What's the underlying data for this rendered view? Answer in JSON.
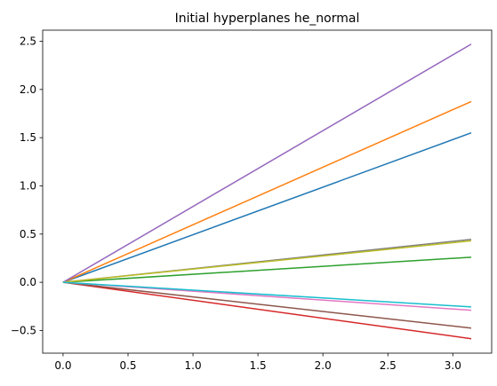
{
  "chart_data": {
    "type": "line",
    "title": "Initial hyperplanes he_normal",
    "xlabel": "",
    "ylabel": "",
    "xlim": [
      -0.157,
      3.299
    ],
    "ylim": [
      -0.735,
      2.615
    ],
    "xticks": [
      0.0,
      0.5,
      1.0,
      1.5,
      2.0,
      2.5,
      3.0
    ],
    "xtick_labels": [
      "0.0",
      "0.5",
      "1.0",
      "1.5",
      "2.0",
      "2.5",
      "3.0"
    ],
    "yticks": [
      -0.5,
      0.0,
      0.5,
      1.0,
      1.5,
      2.0,
      2.5
    ],
    "ytick_labels": [
      "−0.5",
      "0.0",
      "0.5",
      "1.0",
      "1.5",
      "2.0",
      "2.5"
    ],
    "grid": false,
    "legend": "none",
    "x": [
      0.0,
      3.1416
    ],
    "series": [
      {
        "color": "#1f77b4",
        "values": [
          0.0,
          1.55
        ]
      },
      {
        "color": "#ff7f0e",
        "values": [
          0.0,
          1.875
        ]
      },
      {
        "color": "#2ca02c",
        "values": [
          0.0,
          0.26
        ]
      },
      {
        "color": "#d62728",
        "values": [
          0.0,
          -0.585
        ]
      },
      {
        "color": "#9467bd",
        "values": [
          0.0,
          2.47
        ]
      },
      {
        "color": "#8c564b",
        "values": [
          0.0,
          -0.475
        ]
      },
      {
        "color": "#e377c2",
        "values": [
          0.0,
          -0.29
        ]
      },
      {
        "color": "#7f7f7f",
        "values": [
          0.0,
          0.445
        ]
      },
      {
        "color": "#bcbd22",
        "values": [
          0.0,
          0.43
        ]
      },
      {
        "color": "#17becf",
        "values": [
          0.0,
          -0.255
        ]
      }
    ]
  }
}
